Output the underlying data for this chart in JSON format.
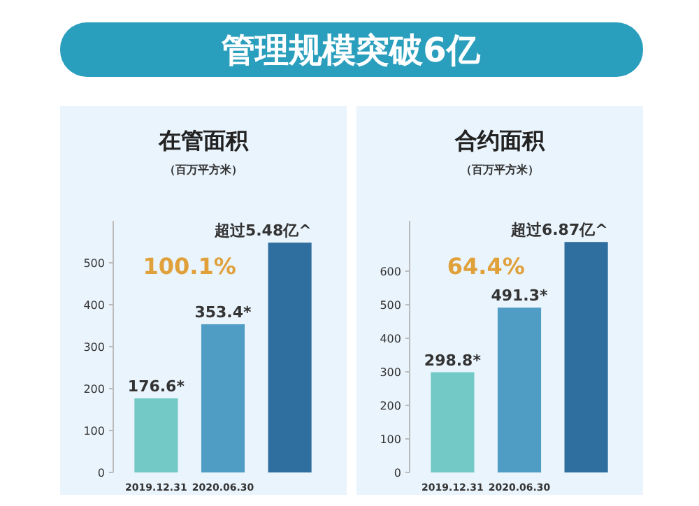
{
  "chart_data": [
    {
      "type": "other",
      "title": "管理规模突破6亿"
    },
    {
      "type": "bar",
      "title": "在管面积",
      "subtitle": "（百万平方米）",
      "categories": [
        "2019.12.31",
        "2020.06.30",
        null
      ],
      "values": [
        176.6,
        353.4,
        548
      ],
      "colors": [
        "#72c9c6",
        "#4f9cc4",
        "#2f6f9f"
      ],
      "value_labels": [
        "176.6*",
        "353.4*",
        "超过5.48亿^"
      ],
      "ylim": [
        0,
        600
      ],
      "yticks": [
        0,
        100,
        200,
        300,
        400,
        500
      ],
      "annotations": [
        "100.1%"
      ]
    },
    {
      "type": "bar",
      "title": "合约面积",
      "subtitle": "（百万平方米）",
      "categories": [
        "2019.12.31",
        "2020.06.30",
        null
      ],
      "values": [
        298.8,
        491.3,
        687
      ],
      "colors": [
        "#72c9c6",
        "#4f9cc4",
        "#2f6f9f"
      ],
      "value_labels": [
        "298.8*",
        "491.3*",
        "超过6.87亿^"
      ],
      "ylim": [
        0,
        750
      ],
      "yticks": [
        0,
        100,
        200,
        300,
        400,
        500,
        600
      ],
      "annotations": [
        "64.4%"
      ]
    }
  ]
}
